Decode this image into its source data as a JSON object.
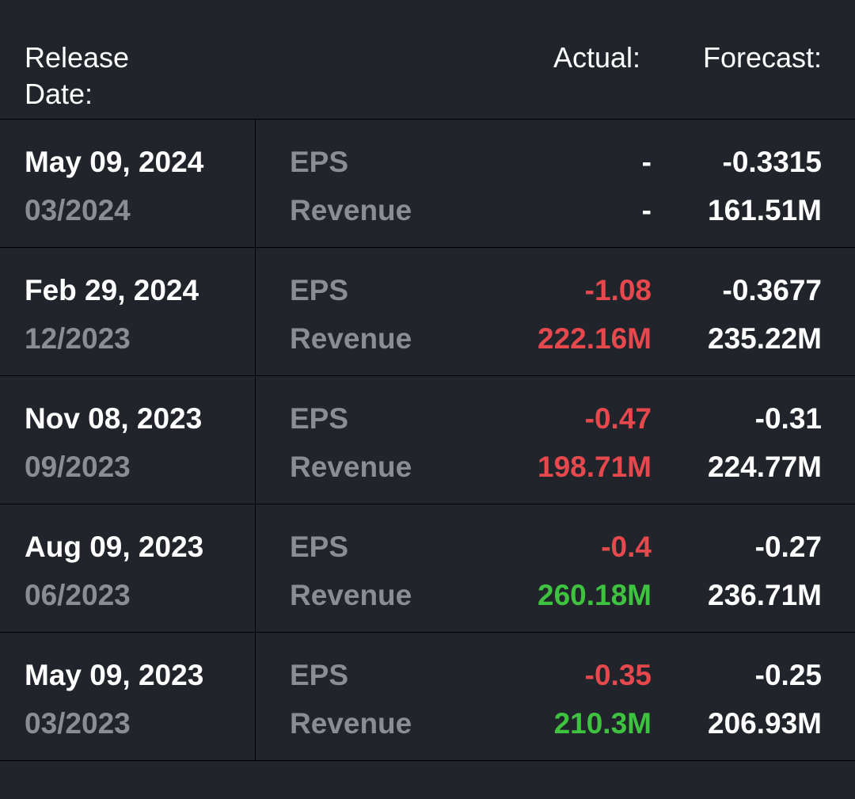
{
  "header": {
    "release_date": "Release Date:",
    "actual": "Actual:",
    "forecast": "Forecast:"
  },
  "rows": [
    {
      "date": "May 09, 2024",
      "period": "03/2024",
      "eps_label": "EPS",
      "revenue_label": "Revenue",
      "eps_actual": "-",
      "eps_forecast": "-0.3315",
      "revenue_actual": "-",
      "revenue_forecast": "161.51M"
    },
    {
      "date": "Feb 29, 2024",
      "period": "12/2023",
      "eps_label": "EPS",
      "revenue_label": "Revenue",
      "eps_actual": "-1.08",
      "eps_forecast": "-0.3677",
      "revenue_actual": "222.16M",
      "revenue_forecast": "235.22M"
    },
    {
      "date": "Nov 08, 2023",
      "period": "09/2023",
      "eps_label": "EPS",
      "revenue_label": "Revenue",
      "eps_actual": "-0.47",
      "eps_forecast": "-0.31",
      "revenue_actual": "198.71M",
      "revenue_forecast": "224.77M"
    },
    {
      "date": "Aug 09, 2023",
      "period": "06/2023",
      "eps_label": "EPS",
      "revenue_label": "Revenue",
      "eps_actual": "-0.4",
      "eps_forecast": "-0.27",
      "revenue_actual": "260.18M",
      "revenue_forecast": "236.71M"
    },
    {
      "date": "May 09, 2023",
      "period": "03/2023",
      "eps_label": "EPS",
      "revenue_label": "Revenue",
      "eps_actual": "-0.35",
      "eps_forecast": "-0.25",
      "revenue_actual": "210.3M",
      "revenue_forecast": "206.93M"
    }
  ],
  "colors": {
    "background": "#21252b",
    "miss": "#e5484d",
    "beat": "#3fc23f",
    "muted": "#8a8e94"
  }
}
